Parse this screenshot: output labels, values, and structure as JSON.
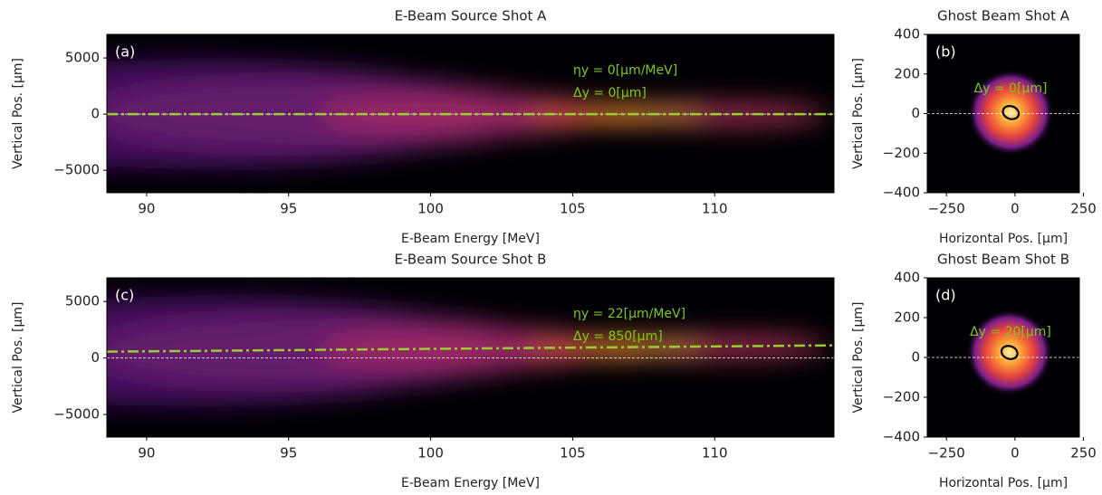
{
  "chart_data": [
    {
      "type": "heatmap",
      "title": "E-Beam Source Shot A",
      "panel_label": "(a)",
      "xlabel": "E-Beam Energy [MeV]",
      "ylabel": "Vertical Pos. [µm]",
      "xlim": [
        88.6,
        114.2
      ],
      "ylim": [
        -7000,
        7100
      ],
      "xticks": [
        90,
        95,
        100,
        105,
        110
      ],
      "yticks": [
        {
          "value": -5000,
          "label": "−5000"
        },
        0,
        5000
      ],
      "annotations": [
        "ηy = 0[µm/MeV]",
        "Δy = 0[µm]"
      ],
      "fit_line": {
        "x": [
          88.6,
          114.2
        ],
        "y": [
          0,
          0
        ]
      },
      "reference_y": 0
    },
    {
      "type": "spot",
      "title": "Ghost Beam Shot A",
      "panel_label": "(b)",
      "xlabel": "Horizontal Pos. [µm]",
      "ylabel": "Vertical Pos. [µm]",
      "xlim": [
        -320,
        235
      ],
      "ylim": [
        -400,
        400
      ],
      "xticks": [
        {
          "value": -250,
          "label": "−250"
        },
        0,
        250
      ],
      "yticks": [
        {
          "value": -400,
          "label": "−400"
        },
        {
          "value": -200,
          "label": "−200"
        },
        0,
        200,
        400
      ],
      "annotations": [
        "Δy = 0[µm]"
      ],
      "centroid": {
        "x": -15,
        "y": 5
      },
      "reference_y": 0
    },
    {
      "type": "heatmap",
      "title": "E-Beam Source Shot B",
      "panel_label": "(c)",
      "xlabel": "E-Beam Energy [MeV]",
      "ylabel": "Vertical Pos. [µm]",
      "xlim": [
        88.6,
        114.2
      ],
      "ylim": [
        -7000,
        7100
      ],
      "xticks": [
        90,
        95,
        100,
        105,
        110
      ],
      "yticks": [
        {
          "value": -5000,
          "label": "−5000"
        },
        0,
        5000
      ],
      "annotations": [
        "ηy = 22[µm/MeV]",
        "Δy = 850[µm]"
      ],
      "fit_line": {
        "x": [
          88.6,
          114.2
        ],
        "y": [
          560,
          1120
        ]
      },
      "reference_y": 0
    },
    {
      "type": "spot",
      "title": "Ghost Beam Shot B",
      "panel_label": "(d)",
      "xlabel": "Horizontal Pos. [µm]",
      "ylabel": "Vertical Pos. [µm]",
      "xlim": [
        -320,
        235
      ],
      "ylim": [
        -400,
        400
      ],
      "xticks": [
        {
          "value": -250,
          "label": "−250"
        },
        0,
        250
      ],
      "yticks": [
        {
          "value": -400,
          "label": "−400"
        },
        {
          "value": -200,
          "label": "−200"
        },
        0,
        200,
        400
      ],
      "annotations": [
        "Δy = 20[µm]"
      ],
      "centroid": {
        "x": -20,
        "y": 25
      },
      "reference_y": 0
    }
  ]
}
